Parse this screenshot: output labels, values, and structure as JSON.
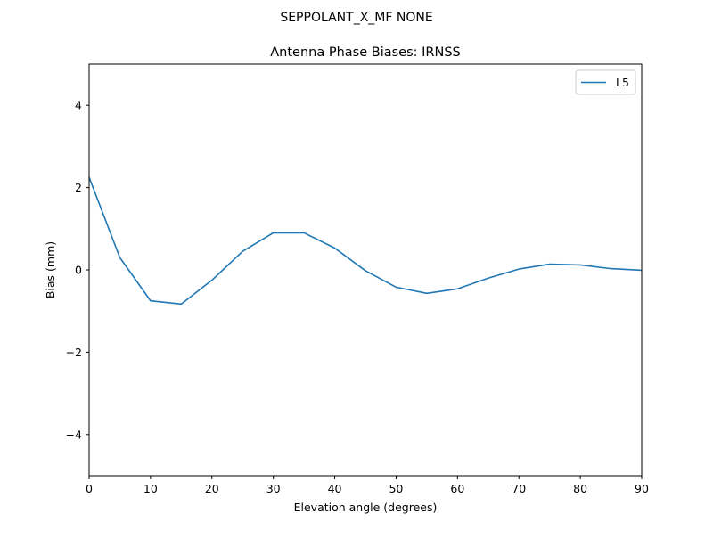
{
  "figure": {
    "suptitle": "SEPPOLANT_X_MF  NONE"
  },
  "chart_data": {
    "type": "line",
    "title": "Antenna Phase Biases: IRNSS",
    "xlabel": "Elevation angle (degrees)",
    "ylabel": "Bias (mm)",
    "xlim": [
      0,
      90
    ],
    "ylim": [
      -5,
      5
    ],
    "x_ticks": [
      0,
      10,
      20,
      30,
      40,
      50,
      60,
      70,
      80,
      90
    ],
    "x_tick_labels": [
      "0",
      "10",
      "20",
      "30",
      "40",
      "50",
      "60",
      "70",
      "80",
      "90"
    ],
    "y_ticks": [
      -4,
      -2,
      0,
      2,
      4
    ],
    "y_tick_labels": [
      "−4",
      "−2",
      "0",
      "2",
      "4"
    ],
    "grid": false,
    "legend": {
      "position": "top-right",
      "entries": [
        "L5"
      ]
    },
    "series": [
      {
        "name": "L5",
        "color": "#1f77b4",
        "x": [
          0,
          5,
          10,
          15,
          20,
          25,
          30,
          35,
          40,
          45,
          50,
          55,
          60,
          65,
          70,
          75,
          80,
          85,
          90
        ],
        "y": [
          2.25,
          0.3,
          -0.75,
          -0.83,
          -0.25,
          0.45,
          0.9,
          0.9,
          0.53,
          -0.02,
          -0.42,
          -0.57,
          -0.46,
          -0.2,
          0.02,
          0.14,
          0.12,
          0.03,
          -0.01
        ]
      }
    ]
  }
}
